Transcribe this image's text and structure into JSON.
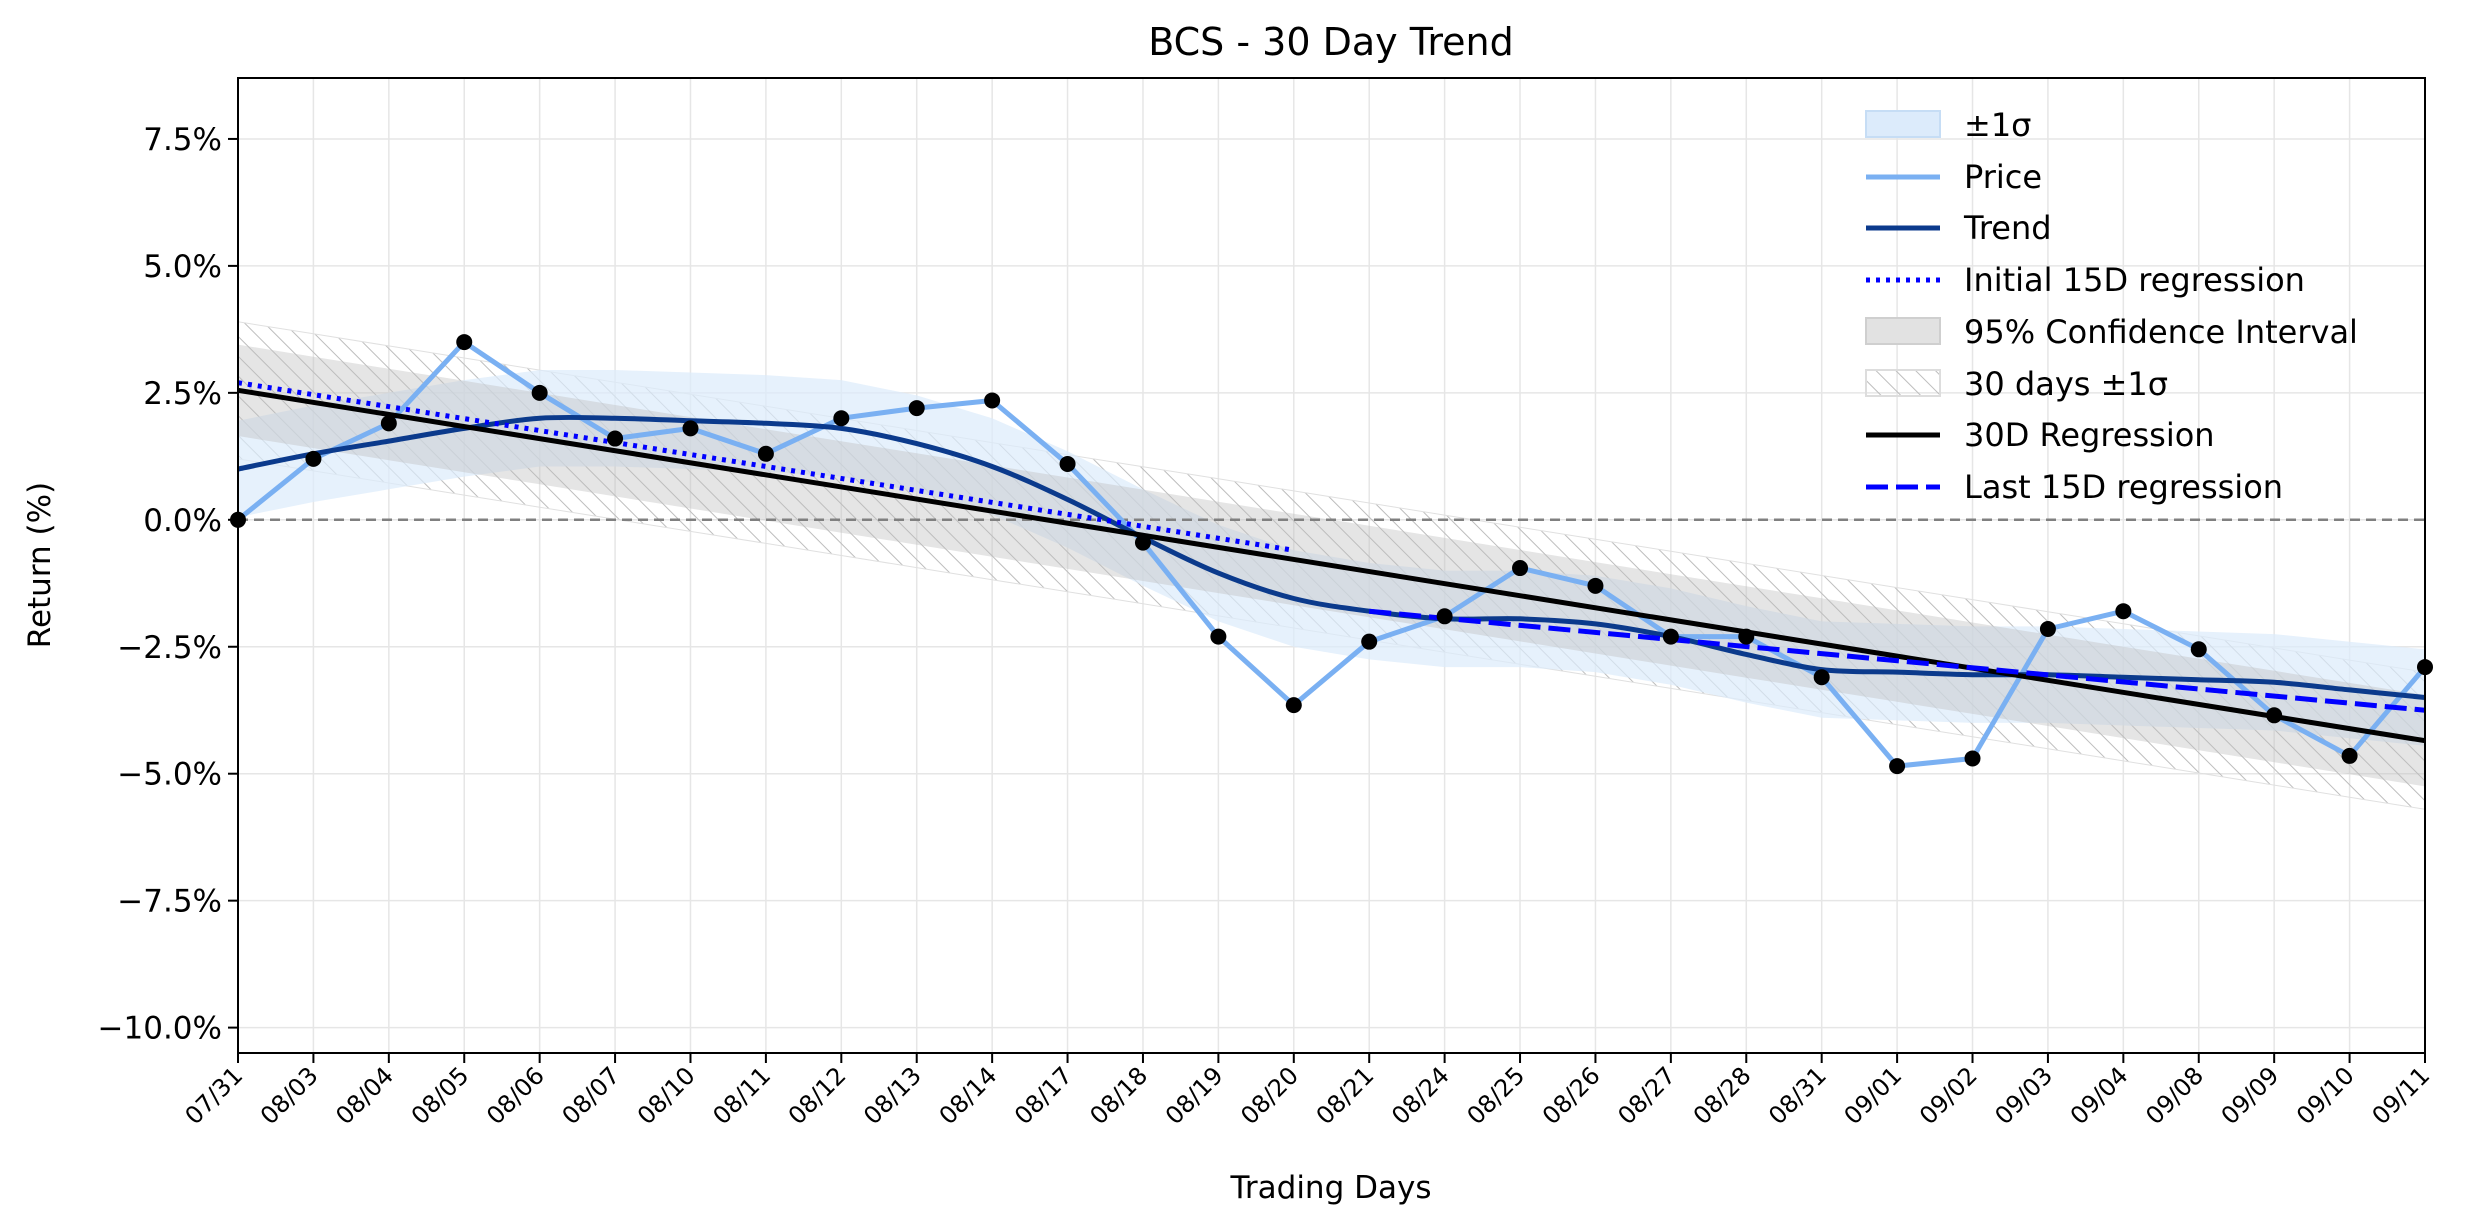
{
  "chart_data": {
    "type": "line",
    "title": "BCS - 30 Day Trend",
    "xlabel": "Trading Days",
    "ylabel": "Return (%)",
    "ylim": [
      -10.5,
      8.7
    ],
    "grid": true,
    "legend_position": "top-right",
    "categories": [
      "07/31",
      "08/03",
      "08/04",
      "08/05",
      "08/06",
      "08/07",
      "08/10",
      "08/11",
      "08/12",
      "08/13",
      "08/14",
      "08/17",
      "08/18",
      "08/19",
      "08/20",
      "08/21",
      "08/24",
      "08/25",
      "08/26",
      "08/27",
      "08/28",
      "08/31",
      "09/01",
      "09/02",
      "09/03",
      "09/04",
      "09/08",
      "09/09",
      "09/10",
      "09/11"
    ],
    "yticks": [
      -10.0,
      -7.5,
      -5.0,
      -2.5,
      0.0,
      2.5,
      5.0,
      7.5
    ],
    "ytick_labels": [
      "−10.0%",
      "−7.5%",
      "−5.0%",
      "−2.5%",
      "0.0%",
      "2.5%",
      "5.0%",
      "7.5%"
    ],
    "legend": [
      "±1σ",
      "Price",
      "Trend",
      "Initial 15D regression",
      "95% Confidence Interval",
      "30 days ±1σ",
      "30D Regression",
      "Last 15D regression"
    ],
    "series": [
      {
        "name": "Price",
        "color": "#7AB0F2",
        "values": [
          0.0,
          1.2,
          1.9,
          3.5,
          2.5,
          1.6,
          1.8,
          1.3,
          2.0,
          2.2,
          2.35,
          1.1,
          -0.45,
          -2.3,
          -3.65,
          -2.4,
          -1.9,
          -0.95,
          -1.3,
          -2.3,
          -2.3,
          -3.1,
          -4.85,
          -4.7,
          -2.15,
          -1.8,
          -2.55,
          -3.85,
          -4.65,
          -2.9
        ]
      },
      {
        "name": "Trend",
        "color": "#0B3A8C",
        "values": [
          1.0,
          1.3,
          1.55,
          1.8,
          2.0,
          2.0,
          1.95,
          1.9,
          1.8,
          1.5,
          1.05,
          0.4,
          -0.35,
          -1.05,
          -1.55,
          -1.8,
          -1.95,
          -1.95,
          -2.05,
          -2.3,
          -2.65,
          -2.95,
          -3.0,
          -3.05,
          -3.05,
          -3.1,
          -3.15,
          -3.2,
          -3.35,
          -3.5
        ]
      },
      {
        "name": "Initial 15D regression",
        "color": "#0000FF",
        "style": "dotted",
        "x_range": [
          0,
          14
        ],
        "y_range": [
          2.7,
          -0.6
        ]
      },
      {
        "name": "30D Regression",
        "color": "#000000",
        "x_range": [
          0,
          29
        ],
        "y_range": [
          2.55,
          -4.35
        ]
      },
      {
        "name": "Last 15D regression",
        "color": "#0000FF",
        "style": "dashed",
        "x_range": [
          15,
          29
        ],
        "y_range": [
          -1.8,
          -3.75
        ]
      },
      {
        "name": "±1σ",
        "color": "#DCEBFB",
        "band": "around Trend",
        "half_width": 0.95
      },
      {
        "name": "95% Confidence Interval",
        "color": "#BFBFBF",
        "band": "around 30D Regression",
        "half_width": 0.9
      },
      {
        "name": "30 days ±1σ",
        "color": "#D9D9D9",
        "band": "around 30D Regression, hatched",
        "half_width": 1.35
      }
    ],
    "reference_line": {
      "y": 0.0,
      "style": "dashed",
      "color": "#808080"
    }
  }
}
